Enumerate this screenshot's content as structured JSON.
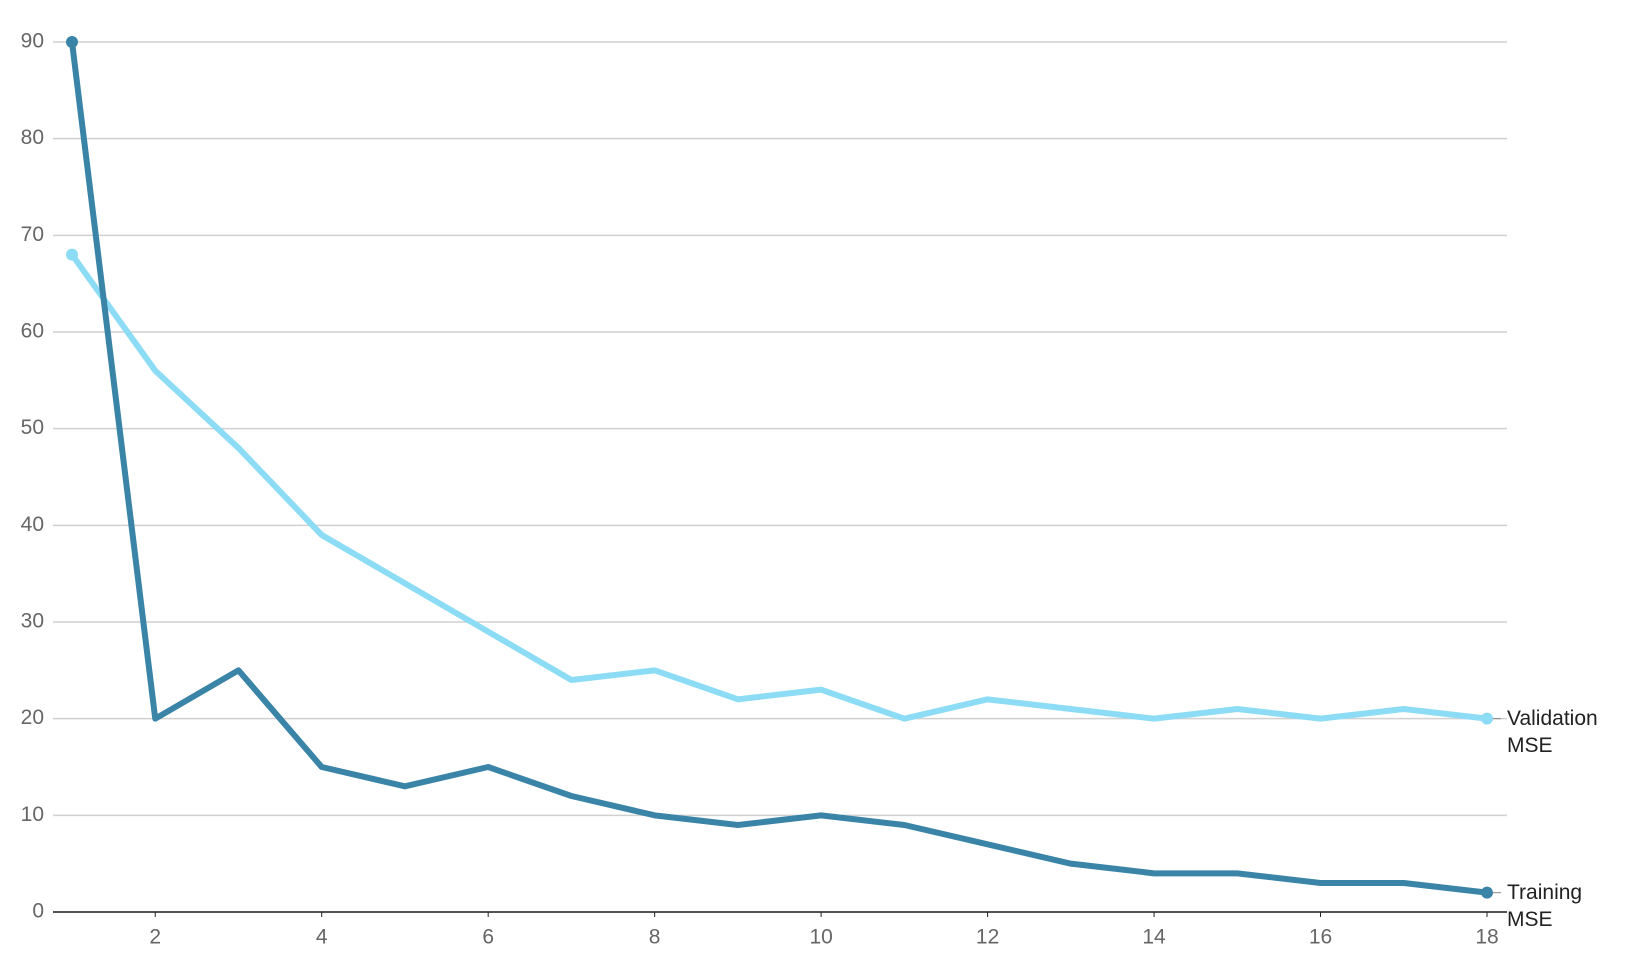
{
  "chart_data": {
    "type": "line",
    "x": [
      1,
      2,
      3,
      4,
      5,
      6,
      7,
      8,
      9,
      10,
      11,
      12,
      13,
      14,
      15,
      16,
      17,
      18
    ],
    "series": [
      {
        "name": "Training MSE",
        "color": "#3a84a8",
        "values": [
          90,
          20,
          25,
          15,
          13,
          15,
          12,
          10,
          9,
          10,
          9,
          7,
          5,
          4,
          4,
          3,
          3,
          2
        ]
      },
      {
        "name": "Validation MSE",
        "color": "#8ddcf5",
        "values": [
          68,
          56,
          48,
          39,
          34,
          29,
          24,
          25,
          22,
          23,
          20,
          22,
          21,
          20,
          21,
          20,
          21,
          20
        ]
      }
    ],
    "xlim": [
      1,
      18
    ],
    "xticks": [
      2,
      4,
      6,
      8,
      10,
      12,
      14,
      16,
      18
    ],
    "ylim": [
      0,
      90
    ],
    "yticks": [
      0,
      10,
      20,
      30,
      40,
      50,
      60,
      70,
      80,
      90
    ],
    "grid": true
  }
}
